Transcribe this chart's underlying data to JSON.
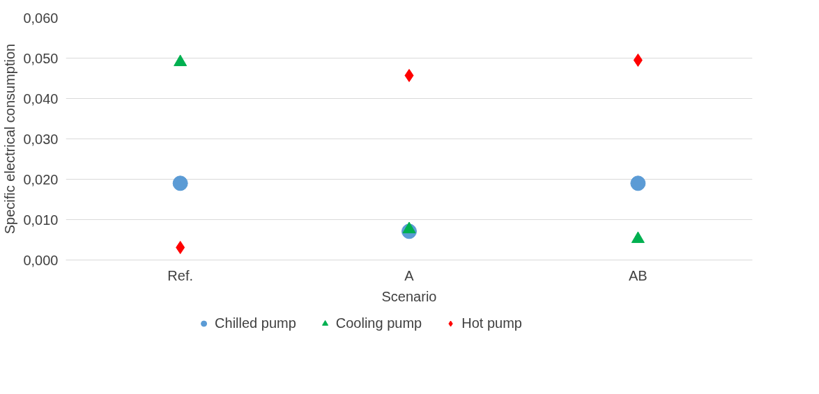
{
  "chart_data": {
    "type": "scatter",
    "xlabel": "Scenario",
    "ylabel": "Specific electrical consumption",
    "categories": [
      "Ref.",
      "A",
      "AB"
    ],
    "series": [
      {
        "name": "Chilled pump",
        "color": "#5b9bd5",
        "marker": "circle",
        "values": [
          0.019,
          0.0071,
          0.019
        ]
      },
      {
        "name": "Cooling pump",
        "color": "#00b050",
        "marker": "triangle",
        "values": [
          0.049,
          0.0076,
          0.0052
        ]
      },
      {
        "name": "Hot pump",
        "color": "#ff0000",
        "marker": "diamond",
        "values": [
          0.0031,
          0.0457,
          0.0495
        ]
      }
    ],
    "ylim": [
      0,
      0.06
    ],
    "yticks": [
      {
        "value": 0,
        "label": "0,000"
      },
      {
        "value": 0.01,
        "label": "0,010"
      },
      {
        "value": 0.02,
        "label": "0,020"
      },
      {
        "value": 0.03,
        "label": "0,030"
      },
      {
        "value": 0.04,
        "label": "0,040"
      },
      {
        "value": 0.05,
        "label": "0,050"
      },
      {
        "value": 0.06,
        "label": "0,060"
      }
    ],
    "grid": "y",
    "legend": "bottom"
  }
}
